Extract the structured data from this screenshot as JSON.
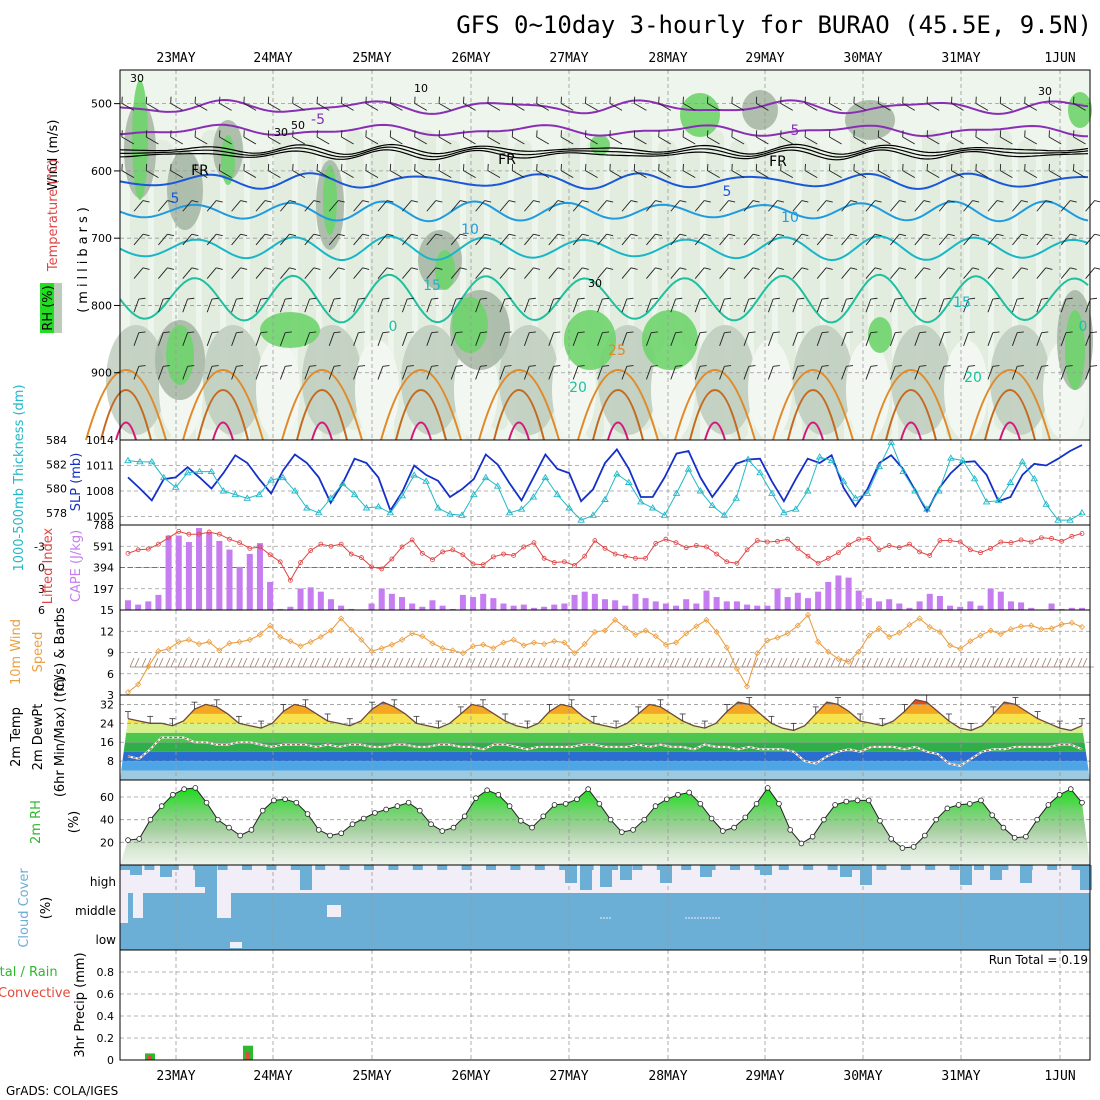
{
  "title": "GFS 0~10day 3-hourly for BURAO (45.5E, 9.5N)",
  "footer": "GrADS: COLA/IGES",
  "colors": {
    "rh_low": "#f3f7f2",
    "rh_mid1": "#d9e6d6",
    "rh_mid2": "#bccbba",
    "rh_high": "#a9b8a6",
    "rh_sat": "#6fd46c",
    "rh_satbright": "#22dd22",
    "slp": "#1530c8",
    "thick": "#22b9c9",
    "cape_bar": "#c57df0",
    "li": "#e04545",
    "wind_speed": "#eba044",
    "barb": "#9b7d73",
    "temp_line": "#6b4a3c",
    "dew_line": "#9a6a5a",
    "rh2m": "#2db82d",
    "cloud": "#6baed6",
    "cloud_bg": "#f1eef7",
    "rain_total": "#2db82d",
    "rain_conv": "#e24a3a"
  },
  "dates": [
    "23MAY",
    "24MAY",
    "25MAY",
    "26MAY",
    "27MAY",
    "28MAY",
    "29MAY",
    "30MAY",
    "31MAY",
    "1JUN"
  ],
  "panel_labels": {
    "upper": {
      "rh": "RH (%)",
      "temp": "Temperature (°C)",
      "wind": "Wind (m/s)",
      "axis": "(millibars)"
    },
    "slp": {
      "thick": "1000-500mb Thickness (dm)",
      "slp": "SLP (mb)"
    },
    "cape": {
      "li": "Lifted Index",
      "cape": "CAPE (J/kg)"
    },
    "wind10": {
      "line1": "10m Wind",
      "line2": "Speed",
      "line3": "(m/s) & Barbs"
    },
    "temp2m": {
      "line1": "2m Temp",
      "line2": "2m DewPt",
      "line3": "(6hr Min/Max) (°C)"
    },
    "rh2m": {
      "line1": "2m RH",
      "line2": "(%)"
    },
    "cloud": {
      "line1": "Cloud Cover",
      "line2": "(%)",
      "levels": [
        "high",
        "middle",
        "low"
      ]
    },
    "precip": {
      "total": "Total / Rain",
      "conv": "Convective",
      "axis": "3hr Precip (mm)",
      "run_total": "Run Total = 0.19"
    }
  },
  "contour_labels": {
    "temp": [
      "-5",
      "5",
      "FR",
      "FR",
      "FR",
      "5",
      "5",
      "10",
      "10",
      "15",
      "15",
      "0",
      "0",
      "20",
      "20",
      "25"
    ],
    "rh": [
      "30",
      "50",
      "10",
      "30",
      "30",
      "30"
    ]
  },
  "chart_data": [
    {
      "type": "heatmap",
      "name": "upper-air cross section",
      "ylabel": "(millibars)",
      "yticks": [
        500,
        600,
        700,
        800,
        900
      ],
      "ylim": [
        1000,
        450
      ],
      "temperature_levels_c": [
        -5,
        0,
        5,
        10,
        15,
        20,
        25
      ],
      "rh_levels_pct": [
        10,
        30,
        50,
        70,
        90
      ],
      "freezing_level_mb": 570
    },
    {
      "type": "line",
      "name": "SLP and thickness",
      "slp_ticks": [
        1005,
        1008,
        1011,
        1014
      ],
      "slp_ylim": [
        1004,
        1014
      ],
      "thick_ticks": [
        578,
        580,
        582,
        584
      ],
      "thick_ylim": [
        577,
        584
      ],
      "series": [
        {
          "name": "SLP (mb)",
          "values": [
            1009.6,
            1008.3,
            1006.9,
            1009.4,
            1009.6,
            1010.8,
            1009.6,
            1008.3,
            1010.1,
            1012.2,
            1011.3,
            1009.4,
            1007.7,
            1010.4,
            1012.3,
            1011.3,
            1009.6,
            1006.6,
            1008.9,
            1011.8,
            1011.3,
            1009.6,
            1005.7,
            1007.9,
            1011.0,
            1009.9,
            1009.2,
            1007.3,
            1008.2,
            1009.4,
            1012.3,
            1011.1,
            1008.9,
            1006.9,
            1009.6,
            1012.3,
            1010.6,
            1010.1,
            1006.8,
            1008.2,
            1011.3,
            1012.9,
            1010.6,
            1007.3,
            1007.3,
            1009.6,
            1012.4,
            1012.7,
            1009.6,
            1007.3,
            1009.2,
            1011.2,
            1011.7,
            1011.8,
            1009.1,
            1006.8,
            1009.4,
            1011.8,
            1011.3,
            1012.2,
            1008.4,
            1006.2,
            1008.2,
            1011.3,
            1012.2,
            1010.6,
            1008.1,
            1005.6,
            1008.3,
            1010.1,
            1011.4,
            1011.5,
            1009.9,
            1006.8,
            1007.3,
            1009.9,
            1011.2,
            1011.0,
            1011.8,
            1012.7,
            1013.4
          ]
        },
        {
          "name": "1000-500mb Thickness (dm)",
          "values": [
            582.3,
            582.2,
            582.2,
            580.9,
            580.1,
            581.3,
            581.4,
            581.4,
            579.8,
            579.5,
            579.2,
            579.5,
            580.7,
            580.9,
            579.8,
            578.4,
            578.0,
            579.2,
            580.4,
            579.5,
            578.4,
            578.5,
            578.0,
            579.4,
            581.1,
            580.6,
            578.4,
            577.9,
            577.8,
            579.5,
            580.9,
            580.2,
            578.0,
            578.3,
            579.3,
            580.9,
            579.5,
            578.4,
            577.4,
            577.8,
            579.1,
            581.2,
            580.5,
            578.9,
            578.4,
            577.8,
            579.6,
            581.6,
            579.8,
            578.6,
            577.8,
            579.2,
            582.4,
            581.3,
            579.6,
            578.0,
            578.3,
            579.8,
            582.6,
            582.3,
            580.6,
            579.2,
            579.6,
            581.8,
            583.8,
            581.4,
            579.8,
            578.3,
            579.8,
            582.5,
            582.3,
            580.8,
            578.9,
            579.0,
            580.5,
            582.2,
            580.8,
            578.7,
            577.4,
            577.4,
            578.0
          ]
        }
      ]
    },
    {
      "type": "bar",
      "name": "CAPE and Lifted Index",
      "cape_ticks": [
        197,
        394,
        591,
        788
      ],
      "cape_ylim": [
        0,
        788
      ],
      "li_ticks": [
        -3,
        0,
        3,
        6
      ],
      "li_ylim": [
        6,
        -6
      ],
      "series": [
        {
          "name": "CAPE (J/kg)",
          "values": [
            90,
            50,
            80,
            140,
            690,
            690,
            630,
            760,
            720,
            640,
            560,
            400,
            520,
            620,
            260,
            10,
            30,
            200,
            210,
            170,
            100,
            40,
            10,
            0,
            60,
            200,
            150,
            120,
            60,
            30,
            90,
            40,
            10,
            140,
            120,
            150,
            110,
            60,
            40,
            50,
            20,
            30,
            50,
            60,
            140,
            170,
            150,
            100,
            90,
            40,
            150,
            110,
            80,
            60,
            40,
            100,
            60,
            180,
            120,
            80,
            80,
            50,
            40,
            40,
            200,
            120,
            160,
            110,
            170,
            260,
            320,
            300,
            180,
            110,
            80,
            100,
            60,
            20,
            80,
            150,
            130,
            40,
            30,
            80,
            40,
            200,
            170,
            80,
            70,
            20,
            0,
            60,
            10,
            20,
            20
          ]
        },
        {
          "name": "Lifted Index",
          "values": [
            -2.0,
            -2.5,
            -2.6,
            -3.3,
            -4.2,
            -5.1,
            -4.7,
            -4.7,
            -5.0,
            -4.7,
            -4.0,
            -3.5,
            -2.7,
            -2.9,
            -1.8,
            -0.8,
            1.8,
            -0.7,
            -2.4,
            -3.3,
            -3.0,
            -3.3,
            -1.9,
            -1.4,
            -0.1,
            0.2,
            -1.2,
            -2.9,
            -3.9,
            -2.0,
            -1.1,
            -2.2,
            -2.5,
            -1.8,
            -0.5,
            -0.4,
            -1.5,
            -1.9,
            -1.7,
            -2.9,
            -3.5,
            -1.3,
            -0.7,
            -0.8,
            -0.3,
            -1.6,
            -3.8,
            -2.7,
            -1.9,
            -1.6,
            -1.3,
            -1.3,
            -3.4,
            -4.0,
            -3.5,
            -2.8,
            -3.1,
            -2.9,
            -1.9,
            -0.8,
            -0.6,
            -2.5,
            -3.8,
            -3.6,
            -3.7,
            -4.0,
            -2.7,
            -1.6,
            -0.6,
            -1.3,
            -2.1,
            -3.2,
            -4.0,
            -4.1,
            -2.5,
            -3.1,
            -2.8,
            -3.3,
            -2.2,
            -1.7,
            -3.8,
            -3.8,
            -3.6,
            -2.5,
            -2.1,
            -2.7,
            -3.6,
            -3.5,
            -3.9,
            -3.6,
            -4.2,
            -4.1,
            -3.7,
            -4.4,
            -4.8
          ]
        }
      ]
    },
    {
      "type": "line",
      "name": "10m wind speed",
      "yticks": [
        3,
        6,
        9,
        12,
        15
      ],
      "ylim": [
        3,
        15
      ],
      "series": [
        {
          "name": "10m Wind Speed (m/s)",
          "values": [
            3.4,
            4.5,
            7.0,
            9.2,
            9.5,
            10.5,
            10.8,
            10.2,
            10.5,
            9.3,
            10.3,
            10.5,
            10.8,
            11.5,
            12.8,
            11.2,
            10.6,
            9.9,
            10.5,
            11.2,
            12.1,
            13.8,
            12.2,
            10.8,
            9.2,
            9.6,
            10.1,
            10.8,
            11.7,
            11.3,
            10.3,
            9.6,
            9.3,
            8.9,
            9.9,
            10.1,
            9.6,
            10.4,
            10.8,
            10.0,
            10.4,
            10.2,
            10.6,
            10.4,
            8.9,
            10.2,
            11.9,
            12.1,
            13.6,
            12.5,
            11.5,
            12.1,
            11.3,
            10.1,
            10.4,
            11.7,
            12.7,
            13.6,
            11.9,
            9.7,
            6.7,
            4.2,
            8.9,
            10.7,
            11.1,
            11.7,
            12.8,
            14.3,
            10.5,
            9.1,
            8.1,
            7.7,
            9.1,
            11.4,
            12.4,
            11.2,
            11.8,
            12.9,
            13.8,
            12.6,
            11.9,
            10.0,
            9.5,
            10.6,
            11.4,
            12.1,
            11.6,
            12.3,
            12.7,
            12.8,
            12.3,
            12.4,
            13.0,
            13.2,
            12.6
          ]
        }
      ]
    },
    {
      "type": "area",
      "name": "2m temperature and dew point",
      "yticks": [
        8,
        16,
        24,
        32
      ],
      "ylim": [
        0,
        36
      ],
      "series": [
        {
          "name": "2m Temp (°C)",
          "values": [
            26,
            25,
            24,
            24,
            23,
            25,
            30,
            32,
            31,
            28,
            24,
            23,
            22,
            24,
            29,
            32,
            31,
            28,
            25,
            24,
            23,
            25,
            30,
            33,
            31,
            28,
            24,
            23,
            22,
            24,
            28,
            32,
            31,
            28,
            25,
            23,
            22,
            24,
            29,
            32,
            31,
            27,
            24,
            23,
            22,
            24,
            28,
            32,
            31,
            28,
            25,
            23,
            22,
            24,
            29,
            33,
            32,
            28,
            24,
            22,
            21,
            23,
            28,
            33,
            32,
            29,
            25,
            24,
            23,
            25,
            29,
            34,
            33,
            29,
            25,
            22,
            21,
            23,
            28,
            33,
            32,
            29,
            26,
            24,
            22,
            21,
            23
          ]
        },
        {
          "name": "2m DewPt (°C)",
          "values": [
            10,
            9,
            13,
            18,
            18,
            18,
            16,
            16,
            15,
            15,
            16,
            16,
            15,
            14,
            15,
            15,
            15,
            14,
            15,
            14,
            15,
            15,
            14,
            14,
            15,
            15,
            14,
            14,
            15,
            15,
            14,
            14,
            13,
            15,
            15,
            14,
            13,
            14,
            14,
            14,
            14,
            15,
            15,
            14,
            14,
            14,
            15,
            14,
            15,
            14,
            14,
            13,
            15,
            14,
            14,
            13,
            14,
            13,
            13,
            13,
            12,
            8,
            7,
            10,
            12,
            13,
            12,
            14,
            14,
            14,
            13,
            14,
            12,
            11,
            7,
            6,
            9,
            12,
            13,
            13,
            14,
            14,
            14,
            14,
            15,
            15,
            13
          ]
        }
      ]
    },
    {
      "type": "area",
      "name": "2m relative humidity",
      "yticks": [
        20,
        40,
        60
      ],
      "ylim": [
        0,
        75
      ],
      "series": [
        {
          "name": "2m RH (%)",
          "values": [
            22,
            23,
            40,
            52,
            62,
            67,
            68,
            55,
            40,
            33,
            26,
            31,
            48,
            57,
            58,
            55,
            45,
            31,
            26,
            28,
            36,
            41,
            46,
            49,
            52,
            55,
            48,
            36,
            30,
            33,
            43,
            59,
            66,
            62,
            52,
            39,
            33,
            43,
            53,
            54,
            58,
            67,
            54,
            40,
            29,
            31,
            40,
            52,
            58,
            62,
            64,
            54,
            41,
            30,
            33,
            42,
            54,
            68,
            54,
            31,
            19,
            25,
            40,
            53,
            56,
            57,
            57,
            39,
            23,
            15,
            16,
            26,
            40,
            50,
            53,
            54,
            57,
            44,
            33,
            24,
            25,
            40,
            53,
            62,
            67,
            55
          ]
        }
      ]
    },
    {
      "type": "bar",
      "name": "cloud cover",
      "categories": [
        "high",
        "middle",
        "low"
      ],
      "note": "high cloud nearly continuous with dips; middle/low near 100% cover"
    },
    {
      "type": "bar",
      "name": "3hr precipitation",
      "ylabel": "3hr Precip (mm)",
      "yticks": [
        0,
        0.2,
        0.4,
        0.6,
        0.8
      ],
      "ylim": [
        0,
        1.0
      ],
      "run_total": 0.19,
      "series": [
        {
          "name": "Total / Rain",
          "x": [
            "22MAY 18Z",
            "23MAY 18Z"
          ],
          "values": [
            0.06,
            0.13
          ]
        },
        {
          "name": "Convective",
          "x": [
            "22MAY 18Z",
            "23MAY 18Z"
          ],
          "values": [
            0.04,
            0.07
          ]
        }
      ]
    }
  ]
}
